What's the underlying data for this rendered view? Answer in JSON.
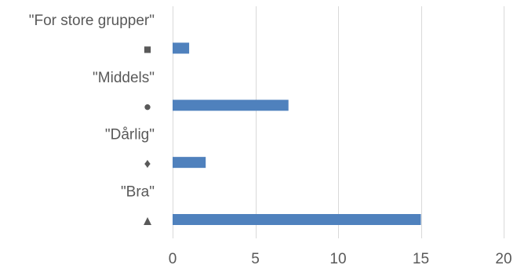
{
  "chart_data": {
    "type": "bar",
    "orientation": "horizontal",
    "title": "",
    "xlabel": "",
    "ylabel": "",
    "categories": [
      "\"For store grupper\"",
      "■",
      "\"Middels\"",
      "●",
      "\"Dårlig\"",
      "♦",
      "\"Bra\"",
      "▲"
    ],
    "values": [
      null,
      1,
      null,
      7,
      null,
      2,
      null,
      15
    ],
    "xlim": [
      0,
      20
    ],
    "xticks": [
      0,
      5,
      10,
      15,
      20
    ],
    "grid": true,
    "legend": "none",
    "colors": {
      "bar": "#4f81bd",
      "grid": "#d9d9d9",
      "text": "#595959"
    }
  }
}
